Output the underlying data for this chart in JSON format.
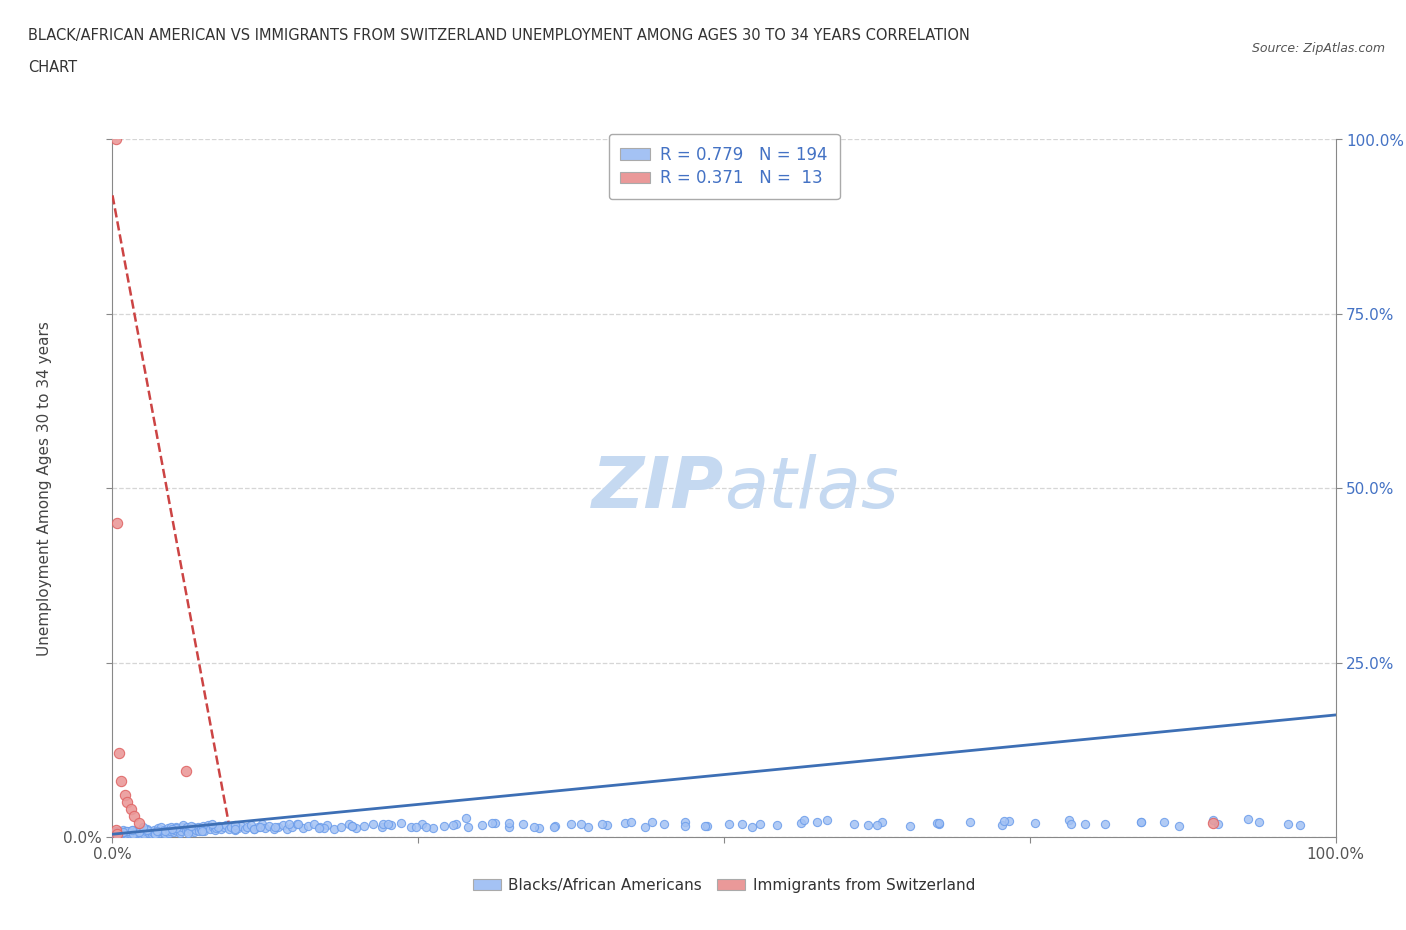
{
  "title_line1": "BLACK/AFRICAN AMERICAN VS IMMIGRANTS FROM SWITZERLAND UNEMPLOYMENT AMONG AGES 30 TO 34 YEARS CORRELATION",
  "title_line2": "CHART",
  "source_text": "Source: ZipAtlas.com",
  "ylabel": "Unemployment Among Ages 30 to 34 years",
  "xlim": [
    0.0,
    1.0
  ],
  "ylim": [
    0.0,
    1.0
  ],
  "blue_color": "#a4c2f4",
  "blue_edge_color": "#6d9eeb",
  "pink_color": "#ea9999",
  "pink_edge_color": "#e06666",
  "blue_line_color": "#3d6fb5",
  "pink_line_color": "#cc4444",
  "grid_color": "#cccccc",
  "background_color": "#ffffff",
  "watermark_color": "#c5d9f1",
  "legend_label1": "Blacks/African Americans",
  "legend_label2": "Immigrants from Switzerland",
  "legend_text_color": "#4472c4",
  "right_axis_color": "#4472c4",
  "blue_x": [
    0.002,
    0.003,
    0.004,
    0.005,
    0.006,
    0.007,
    0.008,
    0.009,
    0.01,
    0.011,
    0.012,
    0.013,
    0.014,
    0.015,
    0.016,
    0.017,
    0.018,
    0.019,
    0.02,
    0.021,
    0.022,
    0.023,
    0.024,
    0.025,
    0.026,
    0.027,
    0.028,
    0.03,
    0.031,
    0.032,
    0.033,
    0.034,
    0.035,
    0.036,
    0.037,
    0.038,
    0.039,
    0.04,
    0.041,
    0.042,
    0.043,
    0.044,
    0.045,
    0.046,
    0.047,
    0.048,
    0.05,
    0.051,
    0.052,
    0.053,
    0.054,
    0.055,
    0.056,
    0.057,
    0.058,
    0.06,
    0.061,
    0.062,
    0.063,
    0.065,
    0.066,
    0.067,
    0.068,
    0.07,
    0.071,
    0.072,
    0.074,
    0.075,
    0.077,
    0.078,
    0.08,
    0.082,
    0.084,
    0.085,
    0.087,
    0.089,
    0.091,
    0.093,
    0.095,
    0.097,
    0.1,
    0.103,
    0.105,
    0.108,
    0.11,
    0.113,
    0.116,
    0.119,
    0.122,
    0.125,
    0.128,
    0.132,
    0.135,
    0.139,
    0.143,
    0.147,
    0.151,
    0.156,
    0.16,
    0.165,
    0.17,
    0.175,
    0.181,
    0.187,
    0.193,
    0.199,
    0.206,
    0.213,
    0.22,
    0.228,
    0.236,
    0.244,
    0.253,
    0.262,
    0.271,
    0.281,
    0.291,
    0.302,
    0.313,
    0.324,
    0.336,
    0.349,
    0.362,
    0.375,
    0.389,
    0.404,
    0.419,
    0.435,
    0.451,
    0.468,
    0.486,
    0.504,
    0.523,
    0.543,
    0.563,
    0.584,
    0.606,
    0.629,
    0.652,
    0.676,
    0.701,
    0.727,
    0.754,
    0.782,
    0.811,
    0.841,
    0.872,
    0.904,
    0.937,
    0.971,
    0.005,
    0.008,
    0.012,
    0.017,
    0.022,
    0.028,
    0.035,
    0.043,
    0.052,
    0.062,
    0.073,
    0.086,
    0.1,
    0.116,
    0.133,
    0.152,
    0.173,
    0.196,
    0.221,
    0.248,
    0.278,
    0.31,
    0.345,
    0.383,
    0.424,
    0.468,
    0.515,
    0.565,
    0.618,
    0.674,
    0.733,
    0.795,
    0.86,
    0.928,
    0.004,
    0.009,
    0.016,
    0.025,
    0.036,
    0.049,
    0.064,
    0.081,
    0.1,
    0.121,
    0.144,
    0.169,
    0.196,
    0.225,
    0.256,
    0.289,
    0.324,
    0.361,
    0.4,
    0.441,
    0.484,
    0.529,
    0.576,
    0.625,
    0.676,
    0.729,
    0.784,
    0.841,
    0.9,
    0.961
  ],
  "blue_y": [
    0.005,
    0.008,
    0.003,
    0.006,
    0.009,
    0.004,
    0.007,
    0.01,
    0.005,
    0.008,
    0.003,
    0.006,
    0.009,
    0.004,
    0.007,
    0.01,
    0.005,
    0.008,
    0.003,
    0.006,
    0.009,
    0.004,
    0.007,
    0.01,
    0.005,
    0.008,
    0.012,
    0.006,
    0.009,
    0.004,
    0.007,
    0.01,
    0.005,
    0.008,
    0.013,
    0.006,
    0.009,
    0.014,
    0.007,
    0.01,
    0.005,
    0.008,
    0.013,
    0.006,
    0.009,
    0.014,
    0.007,
    0.01,
    0.015,
    0.008,
    0.011,
    0.006,
    0.009,
    0.014,
    0.017,
    0.01,
    0.015,
    0.008,
    0.011,
    0.009,
    0.014,
    0.007,
    0.01,
    0.015,
    0.008,
    0.011,
    0.016,
    0.009,
    0.014,
    0.017,
    0.012,
    0.015,
    0.01,
    0.013,
    0.016,
    0.011,
    0.014,
    0.017,
    0.012,
    0.015,
    0.01,
    0.013,
    0.016,
    0.011,
    0.014,
    0.017,
    0.012,
    0.015,
    0.018,
    0.013,
    0.016,
    0.011,
    0.014,
    0.017,
    0.012,
    0.015,
    0.018,
    0.013,
    0.016,
    0.019,
    0.014,
    0.017,
    0.012,
    0.015,
    0.018,
    0.013,
    0.016,
    0.019,
    0.014,
    0.017,
    0.02,
    0.015,
    0.018,
    0.013,
    0.016,
    0.019,
    0.014,
    0.017,
    0.02,
    0.015,
    0.018,
    0.013,
    0.016,
    0.019,
    0.014,
    0.017,
    0.02,
    0.015,
    0.018,
    0.021,
    0.016,
    0.019,
    0.014,
    0.017,
    0.02,
    0.025,
    0.018,
    0.021,
    0.016,
    0.019,
    0.022,
    0.017,
    0.02,
    0.025,
    0.018,
    0.021,
    0.016,
    0.019,
    0.022,
    0.017,
    0.003,
    0.006,
    0.009,
    0.004,
    0.007,
    0.01,
    0.005,
    0.008,
    0.013,
    0.006,
    0.009,
    0.014,
    0.017,
    0.012,
    0.015,
    0.018,
    0.013,
    0.016,
    0.019,
    0.014,
    0.017,
    0.02,
    0.015,
    0.018,
    0.021,
    0.016,
    0.019,
    0.024,
    0.017,
    0.02,
    0.023,
    0.018,
    0.021,
    0.026,
    0.004,
    0.007,
    0.01,
    0.015,
    0.008,
    0.011,
    0.016,
    0.019,
    0.012,
    0.015,
    0.018,
    0.013,
    0.016,
    0.019,
    0.014,
    0.027,
    0.02,
    0.015,
    0.018,
    0.021,
    0.016,
    0.019,
    0.022,
    0.017,
    0.02,
    0.023,
    0.018,
    0.021,
    0.024,
    0.019
  ],
  "pink_x": [
    0.003,
    0.004,
    0.005,
    0.007,
    0.01,
    0.012,
    0.015,
    0.018,
    0.022,
    0.003,
    0.004,
    0.9,
    0.06
  ],
  "pink_y": [
    1.0,
    0.45,
    0.12,
    0.08,
    0.06,
    0.05,
    0.04,
    0.03,
    0.02,
    0.01,
    0.005,
    0.02,
    0.095
  ],
  "blue_trend_x": [
    0.0,
    1.0
  ],
  "blue_trend_y": [
    0.004,
    0.175
  ],
  "pink_line_x": [
    0.0,
    0.095
  ],
  "pink_line_y": [
    0.92,
    0.02
  ]
}
